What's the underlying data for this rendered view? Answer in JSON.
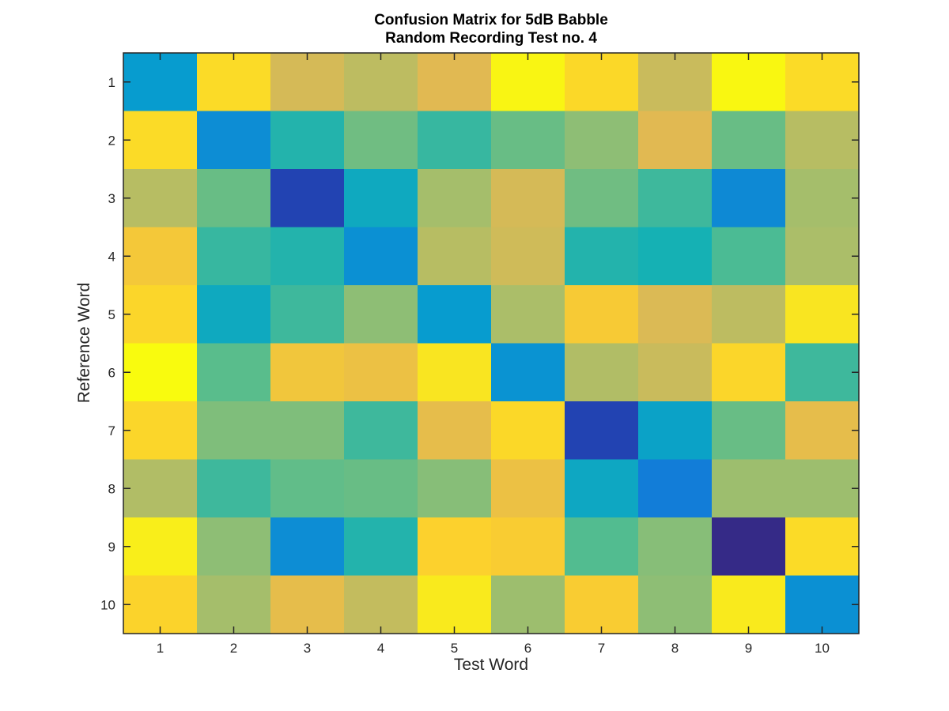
{
  "chart_data": {
    "type": "heatmap",
    "title": [
      "Confusion Matrix for 5dB Babble",
      "Random Recording Test no. 4"
    ],
    "xlabel": "Test Word",
    "ylabel": "Reference Word",
    "x_ticks": [
      "1",
      "2",
      "3",
      "4",
      "5",
      "6",
      "7",
      "8",
      "9",
      "10"
    ],
    "y_ticks": [
      "1",
      "2",
      "3",
      "4",
      "5",
      "6",
      "7",
      "8",
      "9",
      "10"
    ],
    "x_categories": [
      1,
      2,
      3,
      4,
      5,
      6,
      7,
      8,
      9,
      10
    ],
    "y_categories": [
      1,
      2,
      3,
      4,
      5,
      6,
      7,
      8,
      9,
      10
    ],
    "colormap": "parula",
    "color_range": [
      0,
      1
    ],
    "grid": false,
    "values": [
      [
        0.3,
        0.85,
        0.68,
        0.64,
        0.7,
        0.97,
        0.84,
        0.66,
        0.98,
        0.85
      ],
      [
        0.85,
        0.25,
        0.42,
        0.53,
        0.45,
        0.52,
        0.57,
        0.7,
        0.52,
        0.63
      ],
      [
        0.63,
        0.52,
        0.05,
        0.36,
        0.6,
        0.68,
        0.53,
        0.46,
        0.24,
        0.6
      ],
      [
        0.77,
        0.45,
        0.42,
        0.26,
        0.63,
        0.67,
        0.42,
        0.4,
        0.48,
        0.61
      ],
      [
        0.83,
        0.36,
        0.46,
        0.57,
        0.3,
        0.61,
        0.78,
        0.69,
        0.64,
        0.89
      ],
      [
        1.0,
        0.5,
        0.76,
        0.74,
        0.89,
        0.27,
        0.62,
        0.66,
        0.83,
        0.46
      ],
      [
        0.83,
        0.55,
        0.55,
        0.46,
        0.72,
        0.84,
        0.05,
        0.33,
        0.52,
        0.72
      ],
      [
        0.62,
        0.46,
        0.51,
        0.52,
        0.56,
        0.74,
        0.35,
        0.2,
        0.59,
        0.59
      ],
      [
        0.93,
        0.57,
        0.25,
        0.42,
        0.81,
        0.79,
        0.49,
        0.56,
        0.0,
        0.85
      ],
      [
        0.82,
        0.6,
        0.72,
        0.65,
        0.91,
        0.59,
        0.79,
        0.57,
        0.91,
        0.26
      ]
    ]
  }
}
